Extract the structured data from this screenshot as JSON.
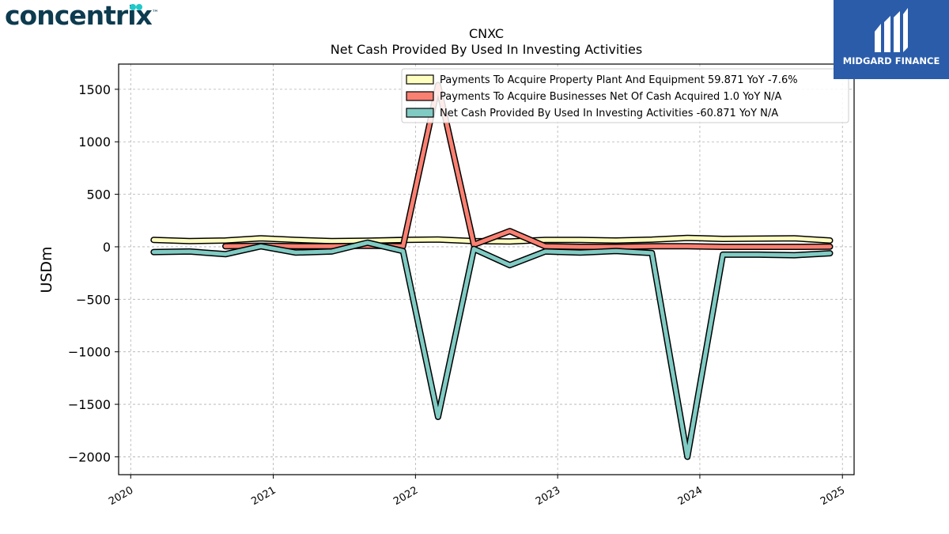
{
  "logos": {
    "left_brand": "concentrix",
    "right_brand": "MIDGARD FINANCE"
  },
  "colors": {
    "ppe": "#ffffc0",
    "businesses": "#fa8072",
    "investing": "#80cbc4",
    "outline": "#000000",
    "grid": "#b0b0b0",
    "brand_right_bg": "#2a5caa",
    "brand_left_text": "#0d3b4f",
    "brand_left_dot": "#20c9c9"
  },
  "chart_data": {
    "type": "line",
    "title": "CNXC",
    "subtitle": "Net Cash Provided By Used In Investing Activities",
    "xlabel": "",
    "ylabel": "USDm",
    "xlim": [
      "2019-12-01",
      "2025-01-31"
    ],
    "ylim": [
      -2170,
      1740
    ],
    "grid": true,
    "legend_position": "top-right",
    "x_ticks": [
      "2020",
      "2021",
      "2022",
      "2023",
      "2024",
      "2025"
    ],
    "y_ticks": [
      1500,
      1000,
      500,
      0,
      -500,
      -1000,
      -1500,
      -2000
    ],
    "y_tick_labels": [
      "1500",
      "1000",
      "500",
      "0",
      "−500",
      "−1000",
      "−1500",
      "−2000"
    ],
    "series": [
      {
        "name": "Payments To Acquire Property Plant And Equipment  59.871 YoY -7.6%",
        "color_key": "ppe",
        "x": [
          "2020-02-29",
          "2020-05-31",
          "2020-08-31",
          "2020-11-30",
          "2021-02-28",
          "2021-05-31",
          "2021-08-31",
          "2021-11-30",
          "2022-02-28",
          "2022-05-31",
          "2022-08-31",
          "2022-11-30",
          "2023-02-28",
          "2023-05-31",
          "2023-08-31",
          "2023-11-30",
          "2024-02-29",
          "2024-05-31",
          "2024-08-31",
          "2024-11-30"
        ],
        "values": [
          65,
          55,
          60,
          80,
          65,
          55,
          58,
          65,
          70,
          55,
          50,
          65,
          65,
          60,
          68,
          85,
          75,
          78,
          80,
          60
        ]
      },
      {
        "name": "Payments To Acquire Businesses Net Of Cash Acquired  1.0 YoY N/A",
        "color_key": "businesses",
        "x": [
          "2020-08-31",
          "2020-11-30",
          "2021-02-28",
          "2021-05-31",
          "2021-08-31",
          "2021-11-30",
          "2022-02-28",
          "2022-05-31",
          "2022-08-31",
          "2022-11-30",
          "2023-02-28",
          "2023-05-31",
          "2023-08-31",
          "2023-11-30",
          "2024-02-29",
          "2024-05-31",
          "2024-08-31",
          "2024-11-30"
        ],
        "values": [
          5,
          10,
          5,
          5,
          10,
          5,
          1540,
          20,
          150,
          5,
          0,
          0,
          5,
          5,
          0,
          0,
          0,
          1
        ]
      },
      {
        "name": "Net Cash Provided By Used In Investing Activities  -60.871 YoY N/A",
        "color_key": "investing",
        "x": [
          "2020-02-29",
          "2020-05-31",
          "2020-08-31",
          "2020-11-30",
          "2021-02-28",
          "2021-05-31",
          "2021-08-31",
          "2021-11-30",
          "2022-02-28",
          "2022-05-31",
          "2022-08-31",
          "2022-11-30",
          "2023-02-28",
          "2023-05-31",
          "2023-08-31",
          "2023-11-30",
          "2024-02-29",
          "2024-05-31",
          "2024-08-31",
          "2024-11-30"
        ],
        "values": [
          -50,
          -45,
          -70,
          5,
          -55,
          -45,
          40,
          -40,
          -1620,
          -20,
          -175,
          -45,
          -55,
          -40,
          -60,
          -2000,
          -75,
          -75,
          -80,
          -61
        ]
      }
    ]
  }
}
